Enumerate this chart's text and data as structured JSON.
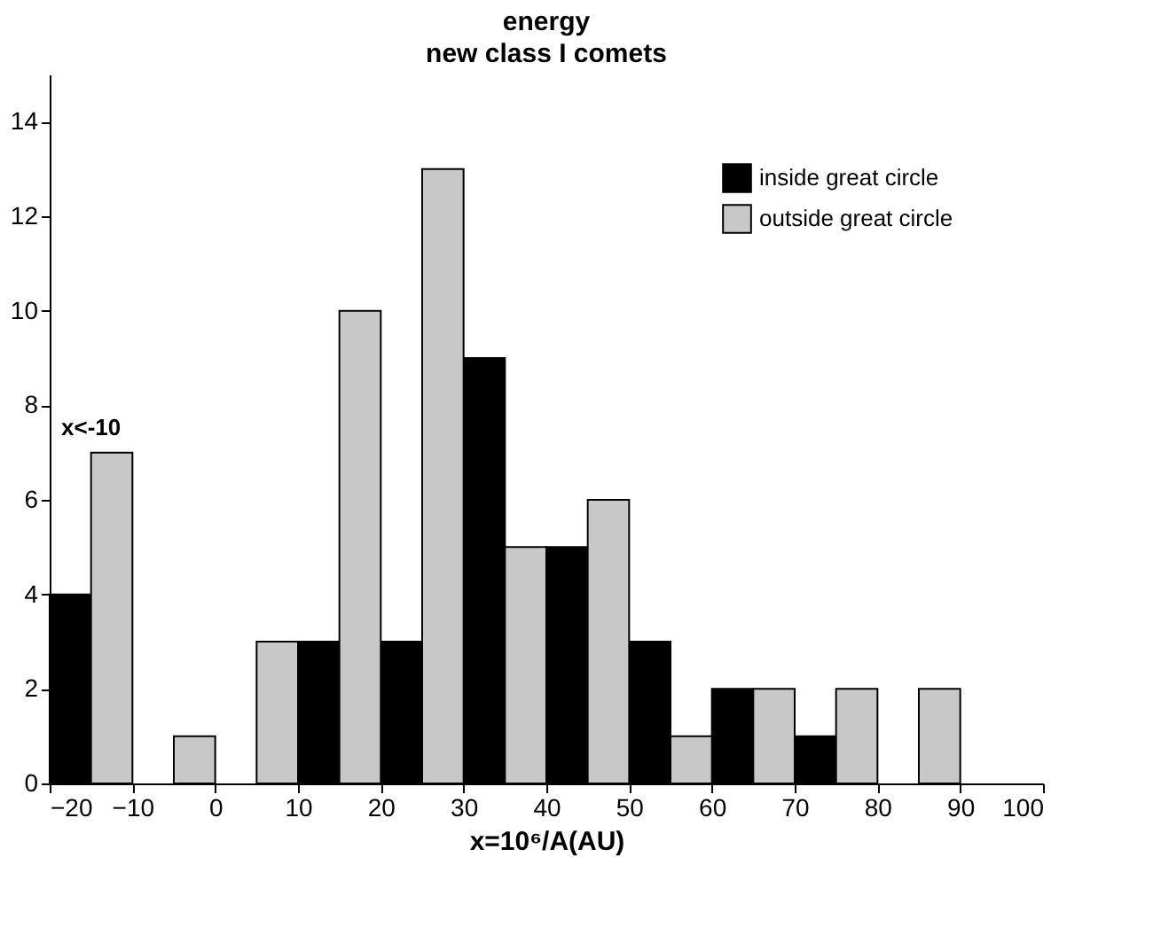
{
  "chart_data": {
    "type": "histogram",
    "title": "energy",
    "subtitle": "new class I comets",
    "xlabel": "x=10⁶/A(AU)",
    "bins": [
      -20,
      -10,
      0,
      10,
      20,
      30,
      40,
      50,
      60,
      70,
      80,
      90
    ],
    "series": [
      {
        "name": "inside great circle",
        "color": "#000000",
        "values": [
          4,
          null,
          null,
          3,
          3,
          9,
          5,
          3,
          2,
          1,
          null
        ]
      },
      {
        "name": "outside great circle",
        "color": "#c8c8c8",
        "values": [
          7,
          1,
          3,
          10,
          13,
          5,
          6,
          1,
          2,
          2,
          2
        ]
      }
    ],
    "xlim": [
      -20,
      100
    ],
    "xticks": [
      -20,
      -10,
      0,
      10,
      20,
      30,
      40,
      50,
      60,
      70,
      80,
      90,
      100
    ],
    "ylim": [
      0,
      15
    ],
    "yticks": [
      0,
      2,
      4,
      6,
      8,
      10,
      12,
      14
    ],
    "annotations": [
      {
        "text": "x<-10",
        "x": -15,
        "y": 7
      }
    ],
    "grid": false,
    "legend": "top right"
  }
}
